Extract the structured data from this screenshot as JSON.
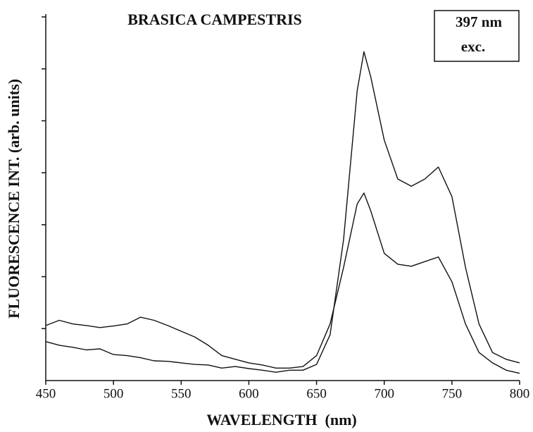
{
  "chart_data": {
    "type": "line",
    "title": "BRASICA CAMPESTRIS",
    "annotation": [
      "397 nm",
      "exc."
    ],
    "x_label": "WAVELENGTH  (nm)",
    "y_label": "FLUORESCENCE INT. (arb. units)",
    "x": [
      450,
      460,
      470,
      480,
      490,
      500,
      510,
      520,
      530,
      540,
      550,
      560,
      570,
      580,
      590,
      600,
      610,
      620,
      630,
      640,
      650,
      660,
      670,
      680,
      685,
      690,
      700,
      710,
      720,
      730,
      740,
      750,
      760,
      770,
      780,
      790,
      800
    ],
    "series": [
      {
        "color": "#111111",
        "values": [
          0.75,
          0.68,
          0.64,
          0.59,
          0.61,
          0.5,
          0.48,
          0.44,
          0.38,
          0.37,
          0.34,
          0.31,
          0.3,
          0.24,
          0.27,
          0.23,
          0.2,
          0.16,
          0.2,
          0.2,
          0.31,
          0.88,
          2.72,
          5.58,
          6.33,
          5.85,
          4.63,
          3.88,
          3.74,
          3.88,
          4.11,
          3.54,
          2.18,
          1.09,
          0.54,
          0.41,
          0.34
        ]
      },
      {
        "color": "#111111",
        "values": [
          1.06,
          1.16,
          1.09,
          1.06,
          1.02,
          1.05,
          1.09,
          1.22,
          1.16,
          1.06,
          0.95,
          0.84,
          0.68,
          0.48,
          0.41,
          0.34,
          0.3,
          0.24,
          0.24,
          0.27,
          0.48,
          1.09,
          2.18,
          3.4,
          3.61,
          3.27,
          2.45,
          2.24,
          2.2,
          2.29,
          2.38,
          1.9,
          1.09,
          0.54,
          0.34,
          0.2,
          0.14
        ]
      }
    ],
    "xlim": [
      450,
      800
    ],
    "xticks": [
      450,
      500,
      550,
      600,
      650,
      700,
      750,
      800
    ],
    "ylim": [
      0,
      7
    ],
    "yticks": [
      1,
      2,
      3,
      4,
      5,
      6,
      7
    ]
  }
}
